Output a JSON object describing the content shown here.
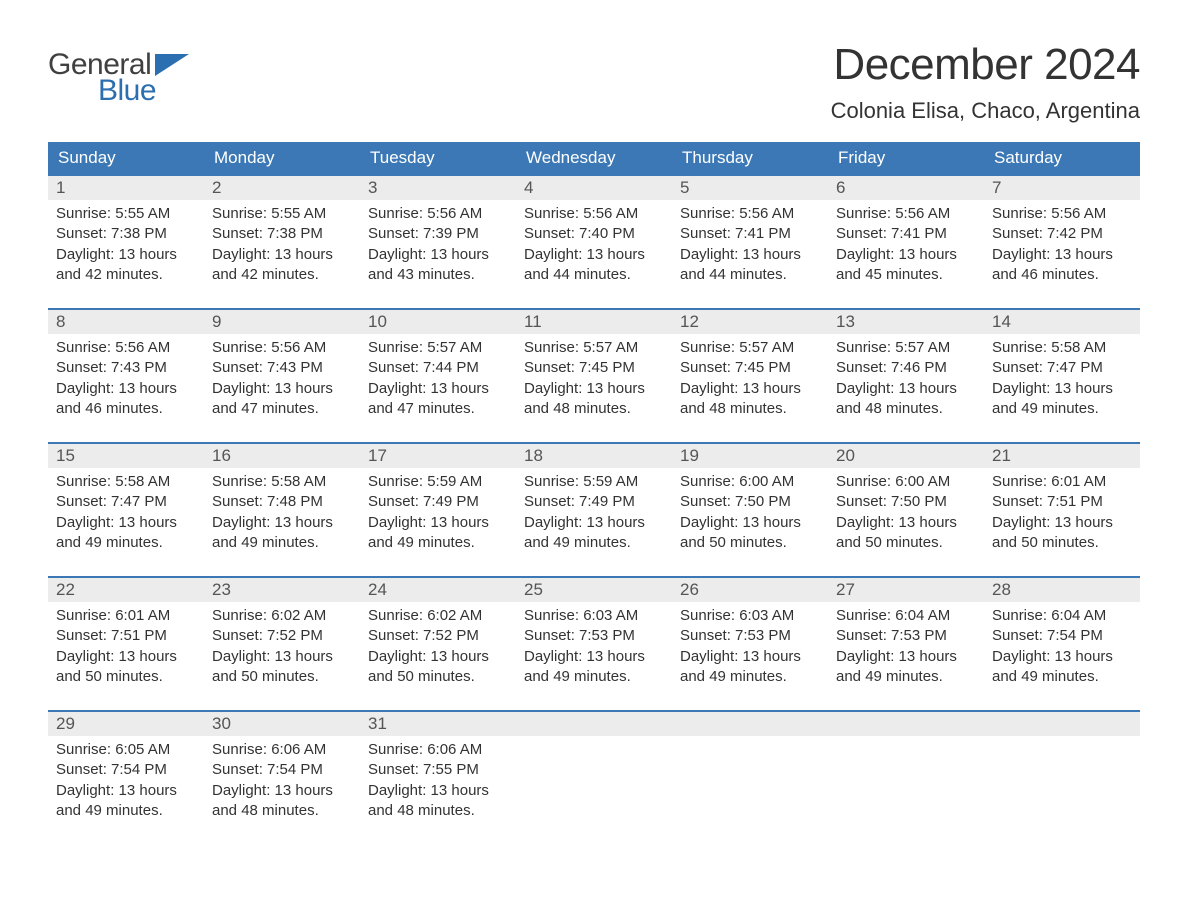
{
  "brand": {
    "text_general": "General",
    "text_blue": "Blue",
    "flag_color": "#2c6fb0",
    "text_general_color": "#404040",
    "text_blue_color": "#2c6fb0"
  },
  "header": {
    "month_title": "December 2024",
    "location": "Colonia Elisa, Chaco, Argentina"
  },
  "colors": {
    "header_bg": "#3b78b5",
    "header_text": "#ffffff",
    "daynum_bg": "#ececec",
    "daynum_text": "#555555",
    "body_text": "#333333",
    "week_border": "#3b78b5",
    "page_bg": "#ffffff"
  },
  "typography": {
    "month_title_fontsize": 44,
    "location_fontsize": 22,
    "dayhead_fontsize": 17,
    "daynum_fontsize": 17,
    "daydata_fontsize": 15,
    "font_family": "Arial"
  },
  "day_names": [
    "Sunday",
    "Monday",
    "Tuesday",
    "Wednesday",
    "Thursday",
    "Friday",
    "Saturday"
  ],
  "weeks": [
    [
      {
        "num": "1",
        "sunrise": "Sunrise: 5:55 AM",
        "sunset": "Sunset: 7:38 PM",
        "daylight1": "Daylight: 13 hours",
        "daylight2": "and 42 minutes."
      },
      {
        "num": "2",
        "sunrise": "Sunrise: 5:55 AM",
        "sunset": "Sunset: 7:38 PM",
        "daylight1": "Daylight: 13 hours",
        "daylight2": "and 42 minutes."
      },
      {
        "num": "3",
        "sunrise": "Sunrise: 5:56 AM",
        "sunset": "Sunset: 7:39 PM",
        "daylight1": "Daylight: 13 hours",
        "daylight2": "and 43 minutes."
      },
      {
        "num": "4",
        "sunrise": "Sunrise: 5:56 AM",
        "sunset": "Sunset: 7:40 PM",
        "daylight1": "Daylight: 13 hours",
        "daylight2": "and 44 minutes."
      },
      {
        "num": "5",
        "sunrise": "Sunrise: 5:56 AM",
        "sunset": "Sunset: 7:41 PM",
        "daylight1": "Daylight: 13 hours",
        "daylight2": "and 44 minutes."
      },
      {
        "num": "6",
        "sunrise": "Sunrise: 5:56 AM",
        "sunset": "Sunset: 7:41 PM",
        "daylight1": "Daylight: 13 hours",
        "daylight2": "and 45 minutes."
      },
      {
        "num": "7",
        "sunrise": "Sunrise: 5:56 AM",
        "sunset": "Sunset: 7:42 PM",
        "daylight1": "Daylight: 13 hours",
        "daylight2": "and 46 minutes."
      }
    ],
    [
      {
        "num": "8",
        "sunrise": "Sunrise: 5:56 AM",
        "sunset": "Sunset: 7:43 PM",
        "daylight1": "Daylight: 13 hours",
        "daylight2": "and 46 minutes."
      },
      {
        "num": "9",
        "sunrise": "Sunrise: 5:56 AM",
        "sunset": "Sunset: 7:43 PM",
        "daylight1": "Daylight: 13 hours",
        "daylight2": "and 47 minutes."
      },
      {
        "num": "10",
        "sunrise": "Sunrise: 5:57 AM",
        "sunset": "Sunset: 7:44 PM",
        "daylight1": "Daylight: 13 hours",
        "daylight2": "and 47 minutes."
      },
      {
        "num": "11",
        "sunrise": "Sunrise: 5:57 AM",
        "sunset": "Sunset: 7:45 PM",
        "daylight1": "Daylight: 13 hours",
        "daylight2": "and 48 minutes."
      },
      {
        "num": "12",
        "sunrise": "Sunrise: 5:57 AM",
        "sunset": "Sunset: 7:45 PM",
        "daylight1": "Daylight: 13 hours",
        "daylight2": "and 48 minutes."
      },
      {
        "num": "13",
        "sunrise": "Sunrise: 5:57 AM",
        "sunset": "Sunset: 7:46 PM",
        "daylight1": "Daylight: 13 hours",
        "daylight2": "and 48 minutes."
      },
      {
        "num": "14",
        "sunrise": "Sunrise: 5:58 AM",
        "sunset": "Sunset: 7:47 PM",
        "daylight1": "Daylight: 13 hours",
        "daylight2": "and 49 minutes."
      }
    ],
    [
      {
        "num": "15",
        "sunrise": "Sunrise: 5:58 AM",
        "sunset": "Sunset: 7:47 PM",
        "daylight1": "Daylight: 13 hours",
        "daylight2": "and 49 minutes."
      },
      {
        "num": "16",
        "sunrise": "Sunrise: 5:58 AM",
        "sunset": "Sunset: 7:48 PM",
        "daylight1": "Daylight: 13 hours",
        "daylight2": "and 49 minutes."
      },
      {
        "num": "17",
        "sunrise": "Sunrise: 5:59 AM",
        "sunset": "Sunset: 7:49 PM",
        "daylight1": "Daylight: 13 hours",
        "daylight2": "and 49 minutes."
      },
      {
        "num": "18",
        "sunrise": "Sunrise: 5:59 AM",
        "sunset": "Sunset: 7:49 PM",
        "daylight1": "Daylight: 13 hours",
        "daylight2": "and 49 minutes."
      },
      {
        "num": "19",
        "sunrise": "Sunrise: 6:00 AM",
        "sunset": "Sunset: 7:50 PM",
        "daylight1": "Daylight: 13 hours",
        "daylight2": "and 50 minutes."
      },
      {
        "num": "20",
        "sunrise": "Sunrise: 6:00 AM",
        "sunset": "Sunset: 7:50 PM",
        "daylight1": "Daylight: 13 hours",
        "daylight2": "and 50 minutes."
      },
      {
        "num": "21",
        "sunrise": "Sunrise: 6:01 AM",
        "sunset": "Sunset: 7:51 PM",
        "daylight1": "Daylight: 13 hours",
        "daylight2": "and 50 minutes."
      }
    ],
    [
      {
        "num": "22",
        "sunrise": "Sunrise: 6:01 AM",
        "sunset": "Sunset: 7:51 PM",
        "daylight1": "Daylight: 13 hours",
        "daylight2": "and 50 minutes."
      },
      {
        "num": "23",
        "sunrise": "Sunrise: 6:02 AM",
        "sunset": "Sunset: 7:52 PM",
        "daylight1": "Daylight: 13 hours",
        "daylight2": "and 50 minutes."
      },
      {
        "num": "24",
        "sunrise": "Sunrise: 6:02 AM",
        "sunset": "Sunset: 7:52 PM",
        "daylight1": "Daylight: 13 hours",
        "daylight2": "and 50 minutes."
      },
      {
        "num": "25",
        "sunrise": "Sunrise: 6:03 AM",
        "sunset": "Sunset: 7:53 PM",
        "daylight1": "Daylight: 13 hours",
        "daylight2": "and 49 minutes."
      },
      {
        "num": "26",
        "sunrise": "Sunrise: 6:03 AM",
        "sunset": "Sunset: 7:53 PM",
        "daylight1": "Daylight: 13 hours",
        "daylight2": "and 49 minutes."
      },
      {
        "num": "27",
        "sunrise": "Sunrise: 6:04 AM",
        "sunset": "Sunset: 7:53 PM",
        "daylight1": "Daylight: 13 hours",
        "daylight2": "and 49 minutes."
      },
      {
        "num": "28",
        "sunrise": "Sunrise: 6:04 AM",
        "sunset": "Sunset: 7:54 PM",
        "daylight1": "Daylight: 13 hours",
        "daylight2": "and 49 minutes."
      }
    ],
    [
      {
        "num": "29",
        "sunrise": "Sunrise: 6:05 AM",
        "sunset": "Sunset: 7:54 PM",
        "daylight1": "Daylight: 13 hours",
        "daylight2": "and 49 minutes."
      },
      {
        "num": "30",
        "sunrise": "Sunrise: 6:06 AM",
        "sunset": "Sunset: 7:54 PM",
        "daylight1": "Daylight: 13 hours",
        "daylight2": "and 48 minutes."
      },
      {
        "num": "31",
        "sunrise": "Sunrise: 6:06 AM",
        "sunset": "Sunset: 7:55 PM",
        "daylight1": "Daylight: 13 hours",
        "daylight2": "and 48 minutes."
      },
      null,
      null,
      null,
      null
    ]
  ]
}
